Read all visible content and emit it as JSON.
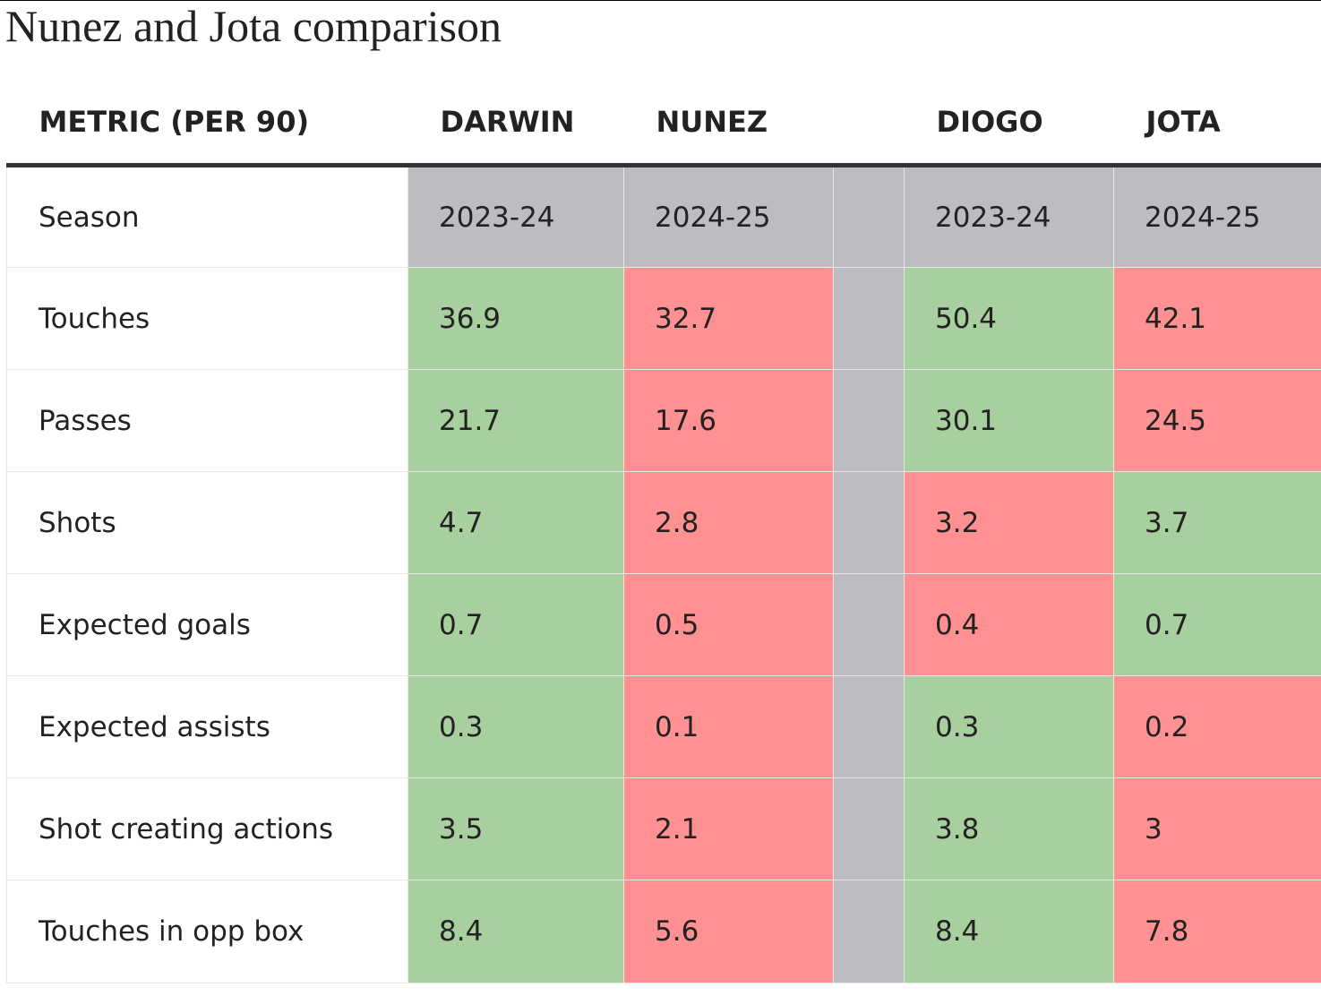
{
  "title": "Nunez and Jota comparison",
  "headers": {
    "metric": "METRIC (PER 90)",
    "player1_first": "DARWIN",
    "player1_last": "NUNEZ",
    "player2_first": "DIOGO",
    "player2_last": "JOTA"
  },
  "colors": {
    "better": "#a8cf9e",
    "worse": "#ff9193",
    "season_row": "#bdbcc1",
    "separator": "#bdbcc1"
  },
  "rows": [
    {
      "metric": "Season",
      "values": [
        "2023-24",
        "2024-25",
        "2023-24",
        "2024-25"
      ],
      "status": [
        "neutral",
        "neutral",
        "neutral",
        "neutral"
      ]
    },
    {
      "metric": "Touches",
      "values": [
        "36.9",
        "32.7",
        "50.4",
        "42.1"
      ],
      "status": [
        "good",
        "bad",
        "good",
        "bad"
      ]
    },
    {
      "metric": "Passes",
      "values": [
        "21.7",
        "17.6",
        "30.1",
        "24.5"
      ],
      "status": [
        "good",
        "bad",
        "good",
        "bad"
      ]
    },
    {
      "metric": "Shots",
      "values": [
        "4.7",
        "2.8",
        "3.2",
        "3.7"
      ],
      "status": [
        "good",
        "bad",
        "bad",
        "good"
      ]
    },
    {
      "metric": "Expected goals",
      "values": [
        "0.7",
        "0.5",
        "0.4",
        "0.7"
      ],
      "status": [
        "good",
        "bad",
        "bad",
        "good"
      ]
    },
    {
      "metric": "Expected assists",
      "values": [
        "0.3",
        "0.1",
        "0.3",
        "0.2"
      ],
      "status": [
        "good",
        "bad",
        "good",
        "bad"
      ]
    },
    {
      "metric": "Shot creating actions",
      "values": [
        "3.5",
        "2.1",
        "3.8",
        "3"
      ],
      "status": [
        "good",
        "bad",
        "good",
        "bad"
      ]
    },
    {
      "metric": "Touches in opp box",
      "values": [
        "8.4",
        "5.6",
        "8.4",
        "7.8"
      ],
      "status": [
        "good",
        "bad",
        "good",
        "bad"
      ]
    }
  ]
}
